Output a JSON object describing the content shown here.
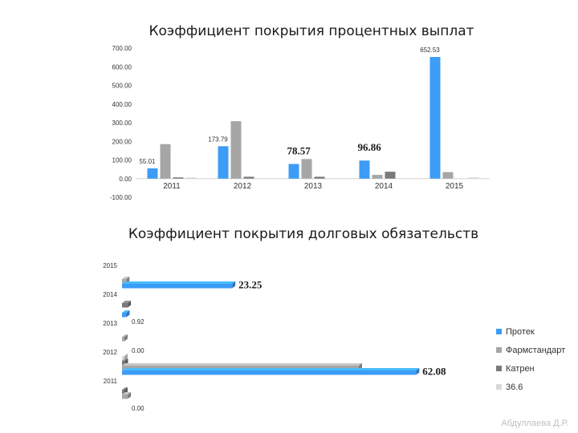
{
  "colors": {
    "Протек": "#3d9cf5",
    "Фармстандарт": "#a6a6a6",
    "Катрен": "#7a7a7a",
    "36.6": "#d9d9d9"
  },
  "chart_data": [
    {
      "type": "bar",
      "title": "Коэффициент покрытия процентных выплат",
      "categories": [
        "2011",
        "2012",
        "2013",
        "2014",
        "2015"
      ],
      "yticks": [
        "-100.00",
        "0.00",
        "100.00",
        "200.00",
        "300.00",
        "400.00",
        "500.00",
        "600.00",
        "700.00"
      ],
      "ylim": [
        -100,
        700
      ],
      "series": [
        {
          "name": "Протек",
          "values": [
            55.01,
            173.79,
            78.57,
            96.86,
            652.53
          ],
          "labels": [
            "55.01",
            "173.79",
            "78.57",
            "96.86",
            "652.53"
          ]
        },
        {
          "name": "Фармстандарт",
          "values": [
            185,
            308,
            105,
            20,
            35
          ]
        },
        {
          "name": "Катрен",
          "values": [
            4,
            10,
            10,
            37,
            0
          ]
        },
        {
          "name": "36.6",
          "values": [
            2,
            0,
            0,
            0,
            3
          ]
        }
      ]
    },
    {
      "type": "bar",
      "orientation": "horizontal",
      "title": "Коэффициент покрытия долговых обязательств",
      "categories": [
        "2015",
        "2014",
        "2013",
        "2012",
        "2011"
      ],
      "xlim": [
        0,
        70
      ],
      "series": [
        {
          "name": "Протек",
          "values": [
            23.25,
            0.92,
            0.0,
            62.08,
            0.0
          ],
          "labels": [
            "23.25",
            "0.92",
            "0.00",
            "62.08",
            "0.00"
          ]
        },
        {
          "name": "Фармстандарт",
          "values": [
            0.9,
            0,
            0.5,
            50,
            1.2
          ]
        },
        {
          "name": "Катрен",
          "values": [
            0,
            1.2,
            0,
            0.6,
            0.3
          ]
        },
        {
          "name": "36.6",
          "values": [
            0,
            0,
            0,
            0.2,
            0
          ]
        }
      ],
      "legend": "right"
    }
  ],
  "author": "Абдуллаева Д.Р."
}
